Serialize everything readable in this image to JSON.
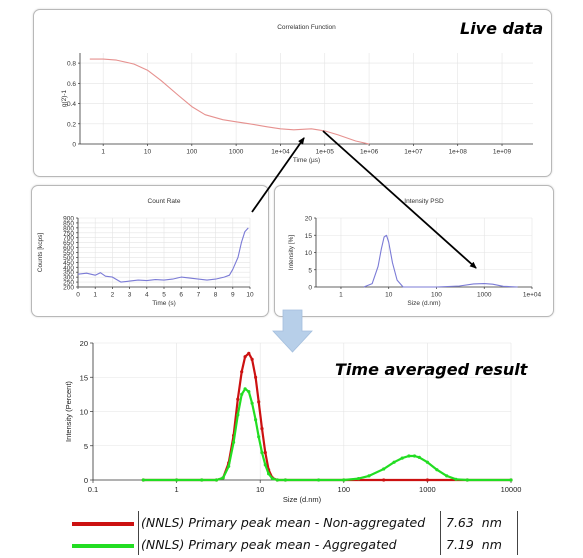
{
  "overlay": {
    "live_label": "Live data",
    "time_averaged_label": "Time averaged result"
  },
  "colors": {
    "live_curve": "#e6918f",
    "live_psd": "#7b7bd6",
    "count_rate": "#7b7bd6",
    "non_aggregated": "#cc1111",
    "aggregated": "#22dd22",
    "arrow_down": "#b7cfe9"
  },
  "chart_data": [
    {
      "id": "correlation",
      "type": "line",
      "title": "Correlation Function",
      "xlabel": "Time (µs)",
      "ylabel": "g(2)-1",
      "x_scale": "log",
      "xlim": [
        0.3,
        5000000000
      ],
      "ylim": [
        0,
        0.9
      ],
      "x_tick_labels": [
        "1",
        "10",
        "100",
        "1000",
        "1e+04",
        "1e+05",
        "1e+06",
        "1e+07",
        "1e+08",
        "1e+09"
      ],
      "y_tick_labels": [
        "0",
        "0.2",
        "0.4",
        "0.6",
        "0.8"
      ],
      "grid": true,
      "series": [
        {
          "x": [
            0.5,
            1,
            2,
            5,
            10,
            20,
            50,
            100,
            200,
            500,
            1000,
            2000,
            5000,
            10000,
            20000,
            50000,
            100000,
            200000,
            500000,
            1000000
          ],
          "y": [
            0.84,
            0.84,
            0.83,
            0.79,
            0.73,
            0.63,
            0.48,
            0.37,
            0.29,
            0.24,
            0.22,
            0.2,
            0.17,
            0.15,
            0.14,
            0.15,
            0.13,
            0.09,
            0.03,
            0.0
          ]
        }
      ]
    },
    {
      "id": "count-rate",
      "type": "line",
      "title": "Count Rate",
      "xlabel": "Time (s)",
      "ylabel": "Counts [kcps]",
      "xlim": [
        0,
        10
      ],
      "ylim": [
        200,
        900
      ],
      "x_tick_labels": [
        "0",
        "1",
        "2",
        "3",
        "4",
        "5",
        "6",
        "7",
        "8",
        "9",
        "10"
      ],
      "y_tick_labels": [
        "200",
        "250",
        "300",
        "350",
        "400",
        "450",
        "500",
        "550",
        "600",
        "650",
        "700",
        "750",
        "800",
        "850",
        "900"
      ],
      "grid": true,
      "series": [
        {
          "x": [
            0,
            0.5,
            1,
            1.3,
            1.6,
            2,
            2.5,
            3,
            3.5,
            4,
            4.5,
            5,
            5.5,
            6,
            6.5,
            7,
            7.5,
            8,
            8.5,
            8.8,
            9,
            9.3,
            9.5,
            9.7,
            9.9
          ],
          "y": [
            330,
            340,
            320,
            345,
            310,
            300,
            250,
            260,
            270,
            265,
            275,
            270,
            280,
            300,
            290,
            280,
            270,
            280,
            300,
            320,
            380,
            500,
            650,
            760,
            800
          ]
        }
      ]
    },
    {
      "id": "live-psd",
      "type": "line",
      "title": "Intensity PSD",
      "xlabel": "Size (d.nm)",
      "ylabel": "Intensity [%]",
      "x_scale": "log",
      "xlim": [
        0.3,
        10000
      ],
      "ylim": [
        0,
        20
      ],
      "x_tick_labels": [
        "1",
        "10",
        "100",
        "1000",
        "1e+04"
      ],
      "y_tick_labels": [
        "0",
        "5",
        "10",
        "15",
        "20"
      ],
      "grid": true,
      "series": [
        {
          "x": [
            3,
            4.5,
            6,
            7,
            8,
            9,
            10,
            12,
            15,
            20,
            100,
            300,
            600,
            1000,
            1500,
            2500,
            5000
          ],
          "y": [
            0,
            1,
            6,
            11,
            14.5,
            15,
            13,
            7,
            2,
            0,
            0,
            0.3,
            0.9,
            1,
            0.8,
            0.2,
            0
          ]
        }
      ]
    },
    {
      "id": "time-averaged",
      "type": "line",
      "title": "",
      "xlabel": "Size (d.nm)",
      "ylabel": "Intensity (Percent)",
      "x_scale": "log",
      "xlim": [
        0.1,
        10000
      ],
      "ylim": [
        0,
        20
      ],
      "x_tick_labels": [
        "0.1",
        "1",
        "10",
        "100",
        "1000",
        "10000"
      ],
      "y_tick_labels": [
        "0",
        "5",
        "10",
        "15",
        "20"
      ],
      "grid": true,
      "series": [
        {
          "name": "(NNLS) Primary peak mean - Non-aggregated",
          "value": "7.63",
          "unit": "nm",
          "x": [
            0.4,
            1,
            2,
            3,
            3.6,
            4.2,
            4.8,
            5.4,
            6,
            6.6,
            7.3,
            8,
            8.8,
            9.6,
            10.5,
            11.5,
            12.6,
            14,
            16,
            20,
            100,
            300,
            1000,
            3000,
            10000
          ],
          "y": [
            0,
            0,
            0,
            0,
            0.3,
            2.5,
            6.5,
            11.8,
            15.8,
            18.0,
            18.5,
            17.6,
            15,
            11.4,
            7.5,
            4,
            1.5,
            0.3,
            0,
            0,
            0,
            0,
            0,
            0,
            0
          ]
        },
        {
          "name": "(NNLS) Primary peak mean - Aggregated",
          "value": "7.19",
          "unit": "nm",
          "x": [
            0.4,
            1,
            2,
            3,
            3.6,
            4.2,
            4.8,
            5.4,
            6,
            6.6,
            7.3,
            8,
            8.8,
            9.6,
            10.5,
            11.5,
            12.6,
            14,
            16,
            20,
            50,
            100,
            150,
            200,
            300,
            400,
            500,
            600,
            700,
            800,
            1000,
            1300,
            1700,
            2200,
            3000,
            10000
          ],
          "y": [
            0,
            0,
            0,
            0,
            0.3,
            2.0,
            5.5,
            9.5,
            12.5,
            13.3,
            12.9,
            11.2,
            8.8,
            6.3,
            4,
            2.2,
            0.9,
            0.2,
            0,
            0,
            0,
            0,
            0.2,
            0.6,
            1.6,
            2.6,
            3.2,
            3.5,
            3.5,
            3.3,
            2.6,
            1.5,
            0.6,
            0.1,
            0,
            0
          ]
        }
      ]
    }
  ]
}
